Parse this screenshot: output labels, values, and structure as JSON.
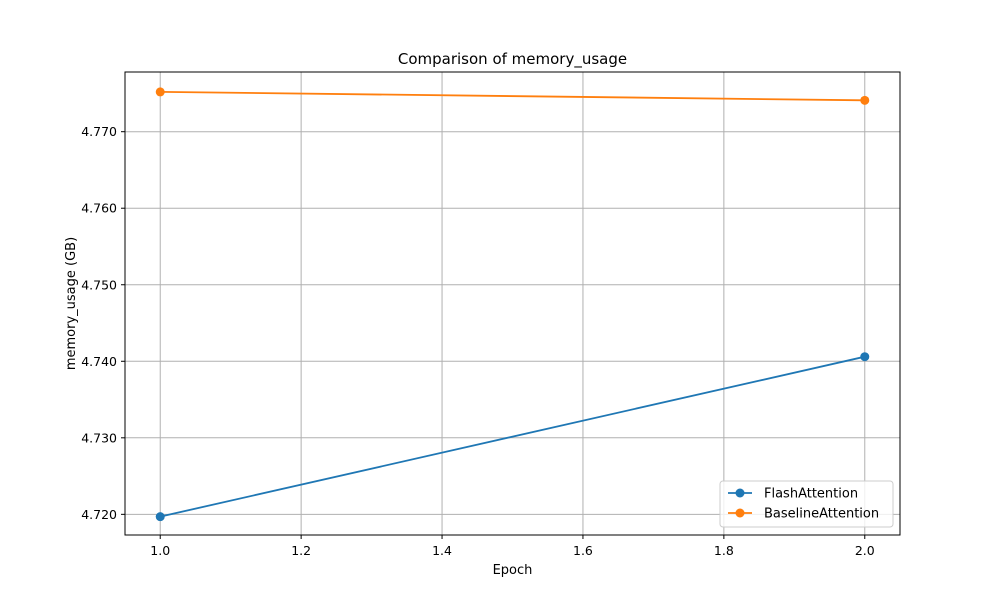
{
  "chart_data": {
    "type": "line",
    "title": "Comparison of memory_usage",
    "xlabel": "Epoch",
    "ylabel": "memory_usage (GB)",
    "x": [
      1.0,
      2.0
    ],
    "xlim": [
      0.95,
      2.05
    ],
    "ylim": [
      4.7173,
      4.7778
    ],
    "xticks": [
      1.0,
      1.2,
      1.4,
      1.6,
      1.8,
      2.0
    ],
    "xtick_labels": [
      "1.0",
      "1.2",
      "1.4",
      "1.6",
      "1.8",
      "2.0"
    ],
    "yticks": [
      4.72,
      4.73,
      4.74,
      4.75,
      4.76,
      4.77
    ],
    "ytick_labels": [
      "4.720",
      "4.730",
      "4.740",
      "4.750",
      "4.760",
      "4.770"
    ],
    "grid": true,
    "legend_position": "lower-right",
    "series": [
      {
        "name": "FlashAttention",
        "color": "#1f77b4",
        "marker": "circle",
        "values": [
          4.7197,
          4.7406
        ]
      },
      {
        "name": "BaselineAttention",
        "color": "#ff7f0e",
        "marker": "circle",
        "values": [
          4.7752,
          4.7741
        ]
      }
    ]
  }
}
